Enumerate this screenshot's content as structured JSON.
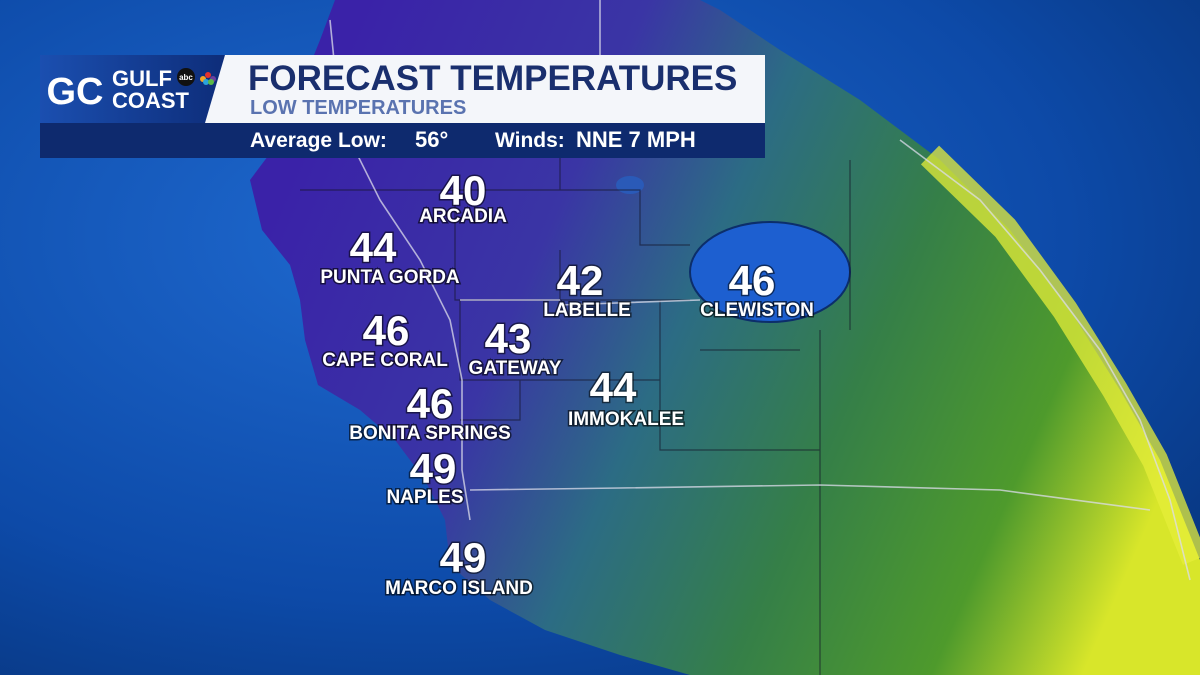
{
  "logo": {
    "mark": "GC",
    "line1": "GULF",
    "line2": "COAST",
    "network": "abc"
  },
  "header": {
    "title": "FORECAST TEMPERATURES",
    "subtitle": "LOW TEMPERATURES",
    "average_label": "Average Low:",
    "average_value": "56°",
    "winds_label": "Winds:",
    "winds_value": "NNE 7 MPH"
  },
  "cities": [
    {
      "temp": 40,
      "name": "ARCADIA"
    },
    {
      "temp": 44,
      "name": "PUNTA GORDA"
    },
    {
      "temp": 42,
      "name": "LABELLE"
    },
    {
      "temp": 46,
      "name": "CLEWISTON"
    },
    {
      "temp": 46,
      "name": "CAPE CORAL"
    },
    {
      "temp": 43,
      "name": "GATEWAY"
    },
    {
      "temp": 44,
      "name": "IMMOKALEE"
    },
    {
      "temp": 46,
      "name": "BONITA SPRINGS"
    },
    {
      "temp": 49,
      "name": "NAPLES"
    },
    {
      "temp": 49,
      "name": "MARCO ISLAND"
    }
  ]
}
